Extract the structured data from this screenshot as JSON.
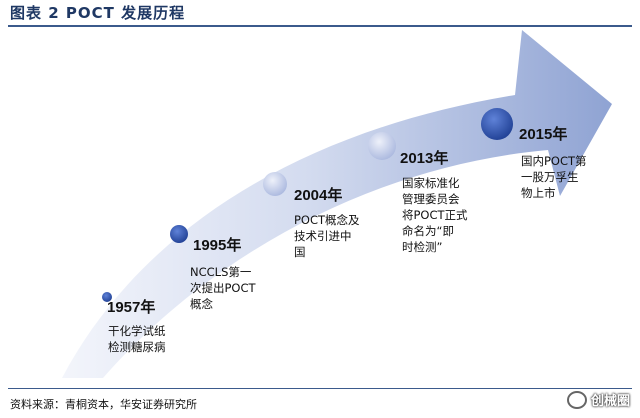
{
  "title": "图表 2    POCT 发展历程",
  "milestones": [
    {
      "year": "1957年",
      "lines": [
        "干化学试纸",
        "检测糖尿病"
      ]
    },
    {
      "year": "1995年",
      "lines": [
        "NCCLS第一",
        "次提出POCT",
        "概念"
      ]
    },
    {
      "year": "2004年",
      "lines": [
        "POCT概念及",
        "技术引进中",
        "国"
      ]
    },
    {
      "year": "2013年",
      "lines": [
        "国家标准化",
        "管理委员会",
        "将POCT正式",
        "命名为“即",
        "时检测”"
      ]
    },
    {
      "year": "2015年",
      "lines": [
        "国内POCT第",
        "一股万孚生",
        "物上市"
      ]
    }
  ],
  "source": "资料来源：青桐资本，华安证券研究所",
  "watermark": "创械圈",
  "colors": {
    "arrow_light": "#eef1f9",
    "arrow_dark": "#98a9d6",
    "dot_blue": "#2f55b0",
    "dot_light": "#b7c3e4"
  }
}
